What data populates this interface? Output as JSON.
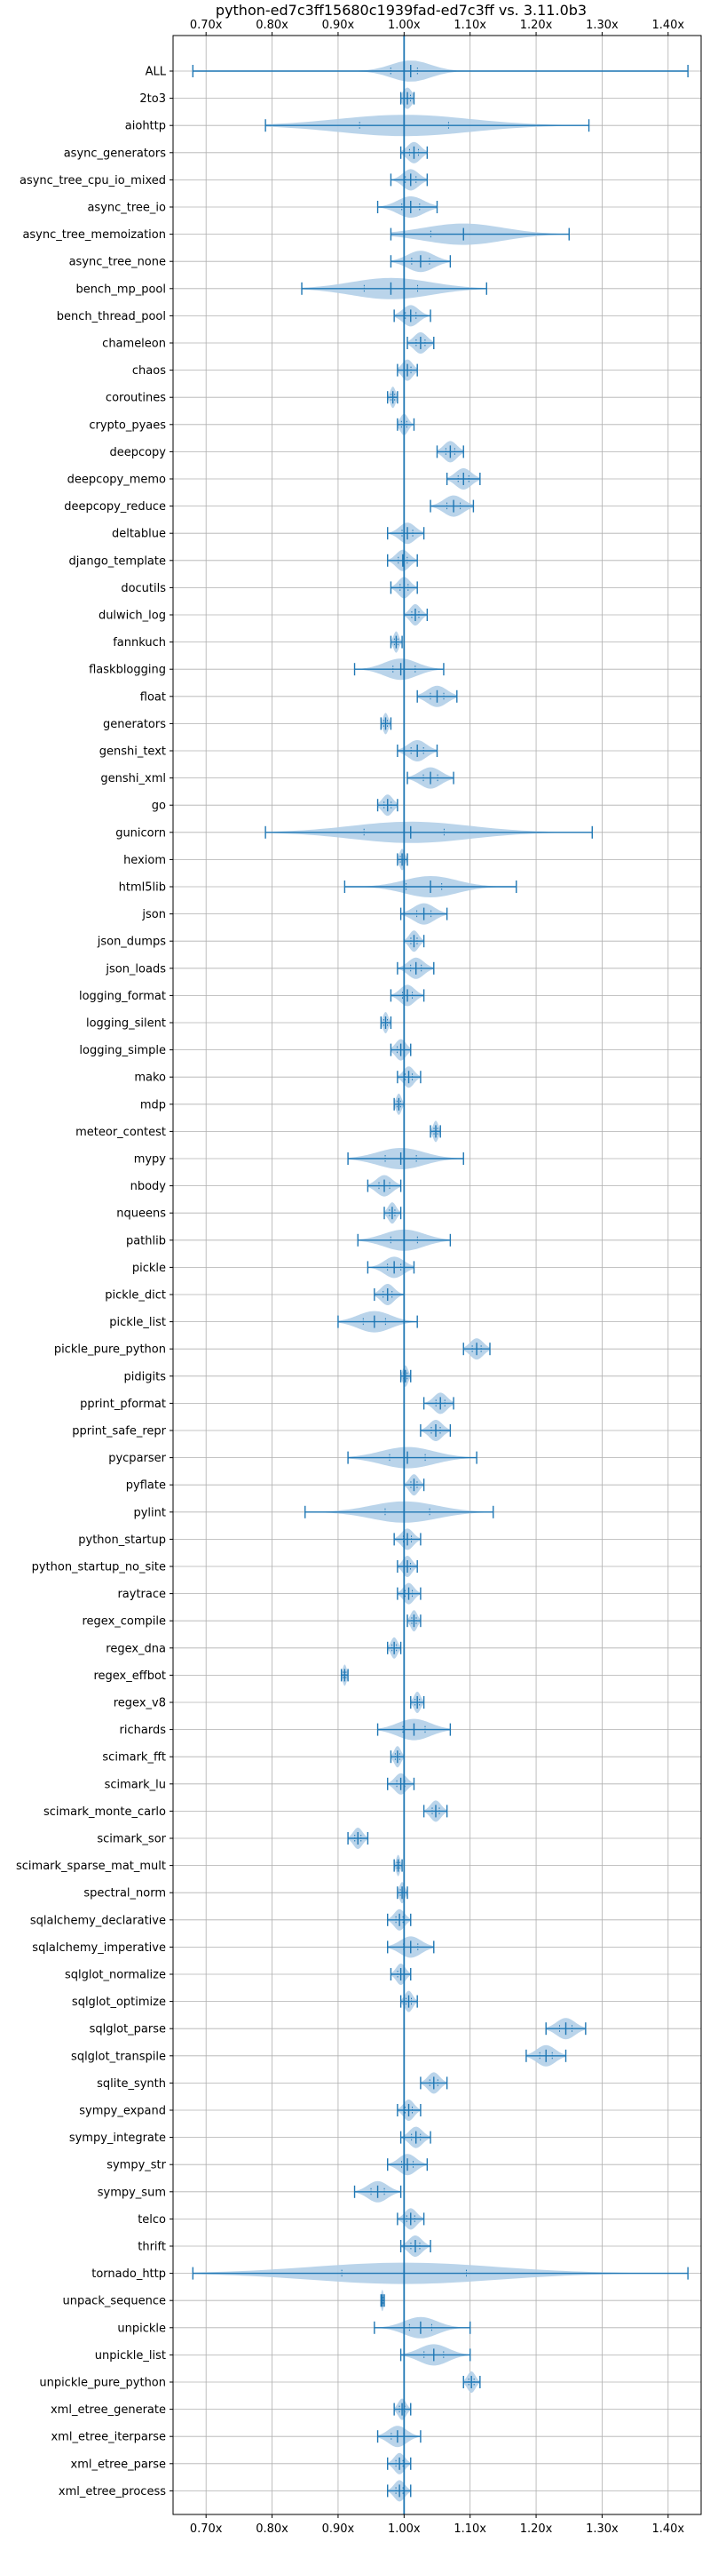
{
  "chart_data": {
    "type": "violin",
    "title": "python-ed7c3ff15680c1939fad-ed7c3ff vs. 3.11.0b3",
    "orientation": "horizontal",
    "xlim": [
      0.65,
      1.45
    ],
    "xticks": [
      0.7,
      0.8,
      0.9,
      1.0,
      1.1,
      1.2,
      1.3,
      1.4
    ],
    "xtick_labels": [
      "0.70x",
      "0.80x",
      "0.90x",
      "1.00x",
      "1.10x",
      "1.20x",
      "1.30x",
      "1.40x"
    ],
    "reference_line": 1.0,
    "grid": true,
    "colors": {
      "violin_fill": "#b3cfe8",
      "line": "#1f77b4",
      "grid": "#b0b0b0"
    },
    "benchmarks": [
      {
        "name": "ALL",
        "min": 0.68,
        "max": 1.43,
        "mean": 1.01,
        "median": 1.0,
        "spread": 0.03
      },
      {
        "name": "2to3",
        "min": 0.995,
        "max": 1.015,
        "mean": 1.005,
        "median": 1.005,
        "spread": 0.007
      },
      {
        "name": "aiohttp",
        "min": 0.79,
        "max": 1.28,
        "mean": 1.0,
        "median": 1.0,
        "spread": 0.1
      },
      {
        "name": "async_generators",
        "min": 0.995,
        "max": 1.035,
        "mean": 1.015,
        "median": 1.015,
        "spread": 0.01
      },
      {
        "name": "async_tree_cpu_io_mixed",
        "min": 0.98,
        "max": 1.035,
        "mean": 1.01,
        "median": 1.01,
        "spread": 0.012
      },
      {
        "name": "async_tree_io",
        "min": 0.96,
        "max": 1.05,
        "mean": 1.01,
        "median": 1.01,
        "spread": 0.02
      },
      {
        "name": "async_tree_memoization",
        "min": 0.98,
        "max": 1.25,
        "mean": 1.09,
        "median": 1.0,
        "spread": 0.06
      },
      {
        "name": "async_tree_none",
        "min": 0.98,
        "max": 1.07,
        "mean": 1.025,
        "median": 1.025,
        "spread": 0.02
      },
      {
        "name": "bench_mp_pool",
        "min": 0.845,
        "max": 1.125,
        "mean": 0.98,
        "median": 0.98,
        "spread": 0.06
      },
      {
        "name": "bench_thread_pool",
        "min": 0.985,
        "max": 1.04,
        "mean": 1.01,
        "median": 1.01,
        "spread": 0.012
      },
      {
        "name": "chameleon",
        "min": 1.005,
        "max": 1.045,
        "mean": 1.025,
        "median": 1.025,
        "spread": 0.01
      },
      {
        "name": "chaos",
        "min": 0.99,
        "max": 1.02,
        "mean": 1.005,
        "median": 1.005,
        "spread": 0.008
      },
      {
        "name": "coroutines",
        "min": 0.975,
        "max": 0.99,
        "mean": 0.983,
        "median": 0.983,
        "spread": 0.004
      },
      {
        "name": "crypto_pyaes",
        "min": 0.99,
        "max": 1.015,
        "mean": 1.0,
        "median": 1.0,
        "spread": 0.006
      },
      {
        "name": "deepcopy",
        "min": 1.05,
        "max": 1.09,
        "mean": 1.07,
        "median": 1.07,
        "spread": 0.01
      },
      {
        "name": "deepcopy_memo",
        "min": 1.065,
        "max": 1.115,
        "mean": 1.09,
        "median": 1.09,
        "spread": 0.012
      },
      {
        "name": "deepcopy_reduce",
        "min": 1.04,
        "max": 1.105,
        "mean": 1.075,
        "median": 1.075,
        "spread": 0.015
      },
      {
        "name": "deltablue",
        "min": 0.975,
        "max": 1.03,
        "mean": 1.005,
        "median": 1.005,
        "spread": 0.012
      },
      {
        "name": "django_template",
        "min": 0.975,
        "max": 1.02,
        "mean": 0.998,
        "median": 0.998,
        "spread": 0.01
      },
      {
        "name": "docutils",
        "min": 0.98,
        "max": 1.02,
        "mean": 1.0,
        "median": 1.0,
        "spread": 0.009
      },
      {
        "name": "dulwich_log",
        "min": 1.0,
        "max": 1.035,
        "mean": 1.017,
        "median": 1.017,
        "spread": 0.008
      },
      {
        "name": "fannkuch",
        "min": 0.98,
        "max": 0.997,
        "mean": 0.988,
        "median": 0.988,
        "spread": 0.004
      },
      {
        "name": "flaskblogging",
        "min": 0.925,
        "max": 1.06,
        "mean": 0.995,
        "median": 1.0,
        "spread": 0.025
      },
      {
        "name": "float",
        "min": 1.02,
        "max": 1.08,
        "mean": 1.05,
        "median": 1.05,
        "spread": 0.015
      },
      {
        "name": "generators",
        "min": 0.965,
        "max": 0.98,
        "mean": 0.972,
        "median": 0.972,
        "spread": 0.004
      },
      {
        "name": "genshi_text",
        "min": 0.99,
        "max": 1.05,
        "mean": 1.02,
        "median": 1.02,
        "spread": 0.014
      },
      {
        "name": "genshi_xml",
        "min": 1.005,
        "max": 1.075,
        "mean": 1.04,
        "median": 1.04,
        "spread": 0.016
      },
      {
        "name": "go",
        "min": 0.96,
        "max": 0.99,
        "mean": 0.975,
        "median": 0.975,
        "spread": 0.008
      },
      {
        "name": "gunicorn",
        "min": 0.79,
        "max": 1.285,
        "mean": 1.01,
        "median": 1.0,
        "spread": 0.09
      },
      {
        "name": "hexiom",
        "min": 0.99,
        "max": 1.005,
        "mean": 0.997,
        "median": 0.997,
        "spread": 0.004
      },
      {
        "name": "html5lib",
        "min": 0.91,
        "max": 1.17,
        "mean": 1.04,
        "median": 1.03,
        "spread": 0.04
      },
      {
        "name": "json",
        "min": 0.995,
        "max": 1.065,
        "mean": 1.03,
        "median": 1.03,
        "spread": 0.016
      },
      {
        "name": "json_dumps",
        "min": 1.0,
        "max": 1.03,
        "mean": 1.015,
        "median": 1.015,
        "spread": 0.007
      },
      {
        "name": "json_loads",
        "min": 0.99,
        "max": 1.045,
        "mean": 1.018,
        "median": 1.018,
        "spread": 0.012
      },
      {
        "name": "logging_format",
        "min": 0.98,
        "max": 1.03,
        "mean": 1.005,
        "median": 1.005,
        "spread": 0.011
      },
      {
        "name": "logging_silent",
        "min": 0.965,
        "max": 0.98,
        "mean": 0.972,
        "median": 0.972,
        "spread": 0.004
      },
      {
        "name": "logging_simple",
        "min": 0.98,
        "max": 1.01,
        "mean": 0.995,
        "median": 0.995,
        "spread": 0.008
      },
      {
        "name": "mako",
        "min": 0.99,
        "max": 1.025,
        "mean": 1.007,
        "median": 1.007,
        "spread": 0.008
      },
      {
        "name": "mdp",
        "min": 0.985,
        "max": 1.0,
        "mean": 0.992,
        "median": 0.992,
        "spread": 0.004
      },
      {
        "name": "meteor_contest",
        "min": 1.04,
        "max": 1.055,
        "mean": 1.048,
        "median": 1.048,
        "spread": 0.004
      },
      {
        "name": "mypy",
        "min": 0.915,
        "max": 1.09,
        "mean": 0.995,
        "median": 0.995,
        "spread": 0.035
      },
      {
        "name": "nbody",
        "min": 0.945,
        "max": 0.995,
        "mean": 0.97,
        "median": 0.97,
        "spread": 0.012
      },
      {
        "name": "nqueens",
        "min": 0.97,
        "max": 0.995,
        "mean": 0.982,
        "median": 0.982,
        "spread": 0.006
      },
      {
        "name": "pathlib",
        "min": 0.93,
        "max": 1.07,
        "mean": 1.0,
        "median": 1.0,
        "spread": 0.03
      },
      {
        "name": "pickle",
        "min": 0.945,
        "max": 1.015,
        "mean": 0.985,
        "median": 0.985,
        "spread": 0.015
      },
      {
        "name": "pickle_dict",
        "min": 0.955,
        "max": 1.0,
        "mean": 0.975,
        "median": 0.975,
        "spread": 0.01
      },
      {
        "name": "pickle_list",
        "min": 0.9,
        "max": 1.02,
        "mean": 0.955,
        "median": 0.955,
        "spread": 0.025
      },
      {
        "name": "pickle_pure_python",
        "min": 1.09,
        "max": 1.13,
        "mean": 1.11,
        "median": 1.11,
        "spread": 0.01
      },
      {
        "name": "pidigits",
        "min": 0.995,
        "max": 1.01,
        "mean": 1.002,
        "median": 1.002,
        "spread": 0.004
      },
      {
        "name": "pprint_pformat",
        "min": 1.03,
        "max": 1.075,
        "mean": 1.055,
        "median": 1.055,
        "spread": 0.01
      },
      {
        "name": "pprint_safe_repr",
        "min": 1.025,
        "max": 1.07,
        "mean": 1.048,
        "median": 1.048,
        "spread": 0.01
      },
      {
        "name": "pycparser",
        "min": 0.915,
        "max": 1.11,
        "mean": 1.005,
        "median": 1.005,
        "spread": 0.04
      },
      {
        "name": "pyflate",
        "min": 1.0,
        "max": 1.03,
        "mean": 1.015,
        "median": 1.015,
        "spread": 0.007
      },
      {
        "name": "pylint",
        "min": 0.85,
        "max": 1.135,
        "mean": 1.0,
        "median": 1.005,
        "spread": 0.05
      },
      {
        "name": "python_startup",
        "min": 0.985,
        "max": 1.025,
        "mean": 1.005,
        "median": 1.005,
        "spread": 0.009
      },
      {
        "name": "python_startup_no_site",
        "min": 0.99,
        "max": 1.02,
        "mean": 1.005,
        "median": 1.005,
        "spread": 0.007
      },
      {
        "name": "raytrace",
        "min": 0.99,
        "max": 1.025,
        "mean": 1.007,
        "median": 1.007,
        "spread": 0.008
      },
      {
        "name": "regex_compile",
        "min": 1.005,
        "max": 1.025,
        "mean": 1.015,
        "median": 1.015,
        "spread": 0.005
      },
      {
        "name": "regex_dna",
        "min": 0.975,
        "max": 0.995,
        "mean": 0.985,
        "median": 0.985,
        "spread": 0.005
      },
      {
        "name": "regex_effbot",
        "min": 0.905,
        "max": 0.915,
        "mean": 0.91,
        "median": 0.91,
        "spread": 0.003
      },
      {
        "name": "regex_v8",
        "min": 1.01,
        "max": 1.03,
        "mean": 1.02,
        "median": 1.02,
        "spread": 0.005
      },
      {
        "name": "richards",
        "min": 0.96,
        "max": 1.07,
        "mean": 1.015,
        "median": 1.015,
        "spread": 0.025
      },
      {
        "name": "scimark_fft",
        "min": 0.98,
        "max": 1.0,
        "mean": 0.99,
        "median": 0.99,
        "spread": 0.005
      },
      {
        "name": "scimark_lu",
        "min": 0.975,
        "max": 1.015,
        "mean": 0.995,
        "median": 0.995,
        "spread": 0.009
      },
      {
        "name": "scimark_monte_carlo",
        "min": 1.03,
        "max": 1.065,
        "mean": 1.048,
        "median": 1.048,
        "spread": 0.008
      },
      {
        "name": "scimark_sor",
        "min": 0.915,
        "max": 0.945,
        "mean": 0.93,
        "median": 0.93,
        "spread": 0.007
      },
      {
        "name": "scimark_sparse_mat_mult",
        "min": 0.985,
        "max": 0.997,
        "mean": 0.991,
        "median": 0.991,
        "spread": 0.003
      },
      {
        "name": "spectral_norm",
        "min": 0.99,
        "max": 1.005,
        "mean": 0.997,
        "median": 0.997,
        "spread": 0.004
      },
      {
        "name": "sqlalchemy_declarative",
        "min": 0.975,
        "max": 1.01,
        "mean": 0.993,
        "median": 0.993,
        "spread": 0.008
      },
      {
        "name": "sqlalchemy_imperative",
        "min": 0.975,
        "max": 1.045,
        "mean": 1.01,
        "median": 1.01,
        "spread": 0.016
      },
      {
        "name": "sqlglot_normalize",
        "min": 0.98,
        "max": 1.01,
        "mean": 0.995,
        "median": 0.995,
        "spread": 0.007
      },
      {
        "name": "sqlglot_optimize",
        "min": 0.995,
        "max": 1.02,
        "mean": 1.007,
        "median": 1.007,
        "spread": 0.006
      },
      {
        "name": "sqlglot_parse",
        "min": 1.215,
        "max": 1.275,
        "mean": 1.245,
        "median": 1.245,
        "spread": 0.014
      },
      {
        "name": "sqlglot_transpile",
        "min": 1.185,
        "max": 1.245,
        "mean": 1.215,
        "median": 1.215,
        "spread": 0.014
      },
      {
        "name": "sqlite_synth",
        "min": 1.025,
        "max": 1.065,
        "mean": 1.045,
        "median": 1.045,
        "spread": 0.009
      },
      {
        "name": "sympy_expand",
        "min": 0.99,
        "max": 1.025,
        "mean": 1.007,
        "median": 1.007,
        "spread": 0.008
      },
      {
        "name": "sympy_integrate",
        "min": 0.995,
        "max": 1.04,
        "mean": 1.018,
        "median": 1.018,
        "spread": 0.01
      },
      {
        "name": "sympy_str",
        "min": 0.975,
        "max": 1.035,
        "mean": 1.005,
        "median": 1.005,
        "spread": 0.013
      },
      {
        "name": "sympy_sum",
        "min": 0.925,
        "max": 0.995,
        "mean": 0.96,
        "median": 0.96,
        "spread": 0.015
      },
      {
        "name": "telco",
        "min": 0.99,
        "max": 1.03,
        "mean": 1.01,
        "median": 1.01,
        "spread": 0.009
      },
      {
        "name": "thrift",
        "min": 0.995,
        "max": 1.04,
        "mean": 1.017,
        "median": 1.017,
        "spread": 0.01
      },
      {
        "name": "tornado_http",
        "min": 0.68,
        "max": 1.43,
        "mean": 1.0,
        "median": 1.0,
        "spread": 0.14
      },
      {
        "name": "unpack_sequence",
        "min": 0.965,
        "max": 0.97,
        "mean": 0.967,
        "median": 0.967,
        "spread": 0.002
      },
      {
        "name": "unpickle",
        "min": 0.955,
        "max": 1.1,
        "mean": 1.025,
        "median": 1.025,
        "spread": 0.025
      },
      {
        "name": "unpickle_list",
        "min": 0.995,
        "max": 1.1,
        "mean": 1.045,
        "median": 1.045,
        "spread": 0.022
      },
      {
        "name": "unpickle_pure_python",
        "min": 1.09,
        "max": 1.115,
        "mean": 1.102,
        "median": 1.102,
        "spread": 0.006
      },
      {
        "name": "xml_etree_generate",
        "min": 0.985,
        "max": 1.01,
        "mean": 0.997,
        "median": 0.997,
        "spread": 0.006
      },
      {
        "name": "xml_etree_iterparse",
        "min": 0.96,
        "max": 1.025,
        "mean": 0.99,
        "median": 0.99,
        "spread": 0.014
      },
      {
        "name": "xml_etree_parse",
        "min": 0.975,
        "max": 1.01,
        "mean": 0.993,
        "median": 0.993,
        "spread": 0.008
      },
      {
        "name": "xml_etree_process",
        "min": 0.975,
        "max": 1.01,
        "mean": 0.993,
        "median": 0.993,
        "spread": 0.008
      }
    ]
  }
}
